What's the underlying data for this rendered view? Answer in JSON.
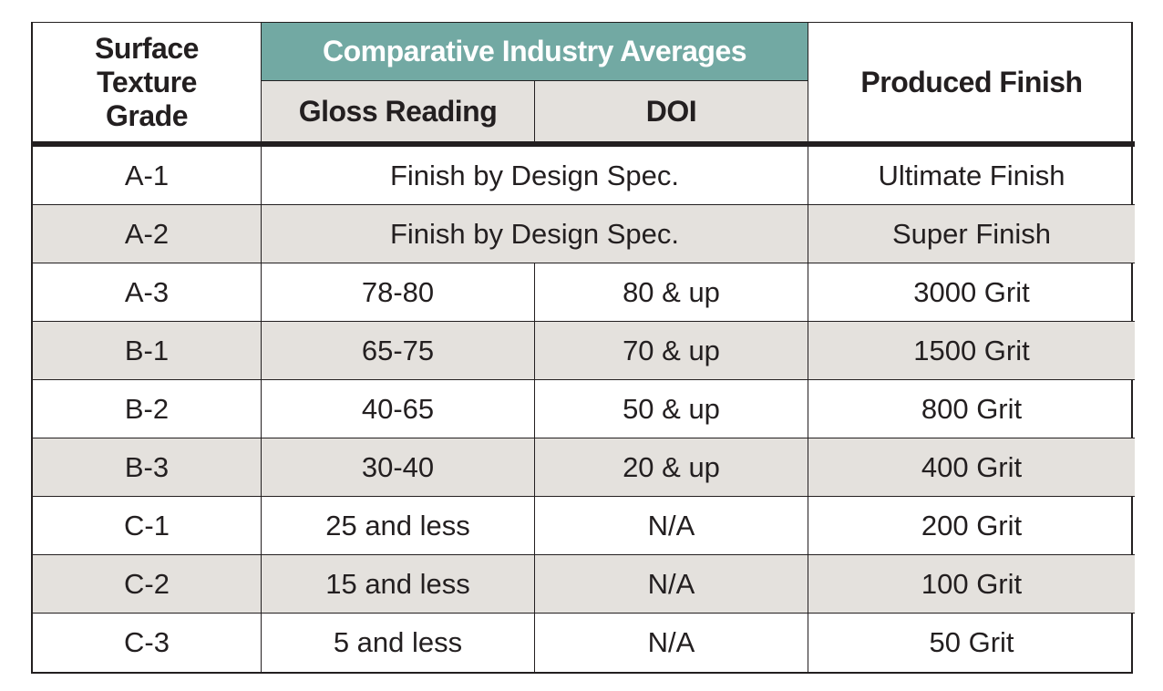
{
  "header": {
    "grade": "Surface Texture Grade",
    "group": "Comparative Industry Averages",
    "gloss": "Gloss Reading",
    "doi": "DOI",
    "finish": "Produced Finish"
  },
  "rows": [
    {
      "grade": "A-1",
      "spec": "Finish by Design Spec.",
      "finish": "Ultimate Finish"
    },
    {
      "grade": "A-2",
      "spec": "Finish by Design Spec.",
      "finish": "Super Finish"
    },
    {
      "grade": "A-3",
      "gloss": "78-80",
      "doi": "80 & up",
      "finish": "3000 Grit"
    },
    {
      "grade": "B-1",
      "gloss": "65-75",
      "doi": "70 & up",
      "finish": "1500 Grit"
    },
    {
      "grade": "B-2",
      "gloss": "40-65",
      "doi": "50 & up",
      "finish": "800 Grit"
    },
    {
      "grade": "B-3",
      "gloss": "30-40",
      "doi": "20 & up",
      "finish": "400 Grit"
    },
    {
      "grade": "C-1",
      "gloss": "25 and less",
      "doi": "N/A",
      "finish": "200 Grit"
    },
    {
      "grade": "C-2",
      "gloss": "15 and less",
      "doi": "N/A",
      "finish": "100 Grit"
    },
    {
      "grade": "C-3",
      "gloss": "5 and less",
      "doi": "N/A",
      "finish": "50 Grit"
    }
  ],
  "colors": {
    "group_header": "#72a9a3",
    "shaded_row": "#e4e1dd",
    "rule": "#231f20"
  }
}
